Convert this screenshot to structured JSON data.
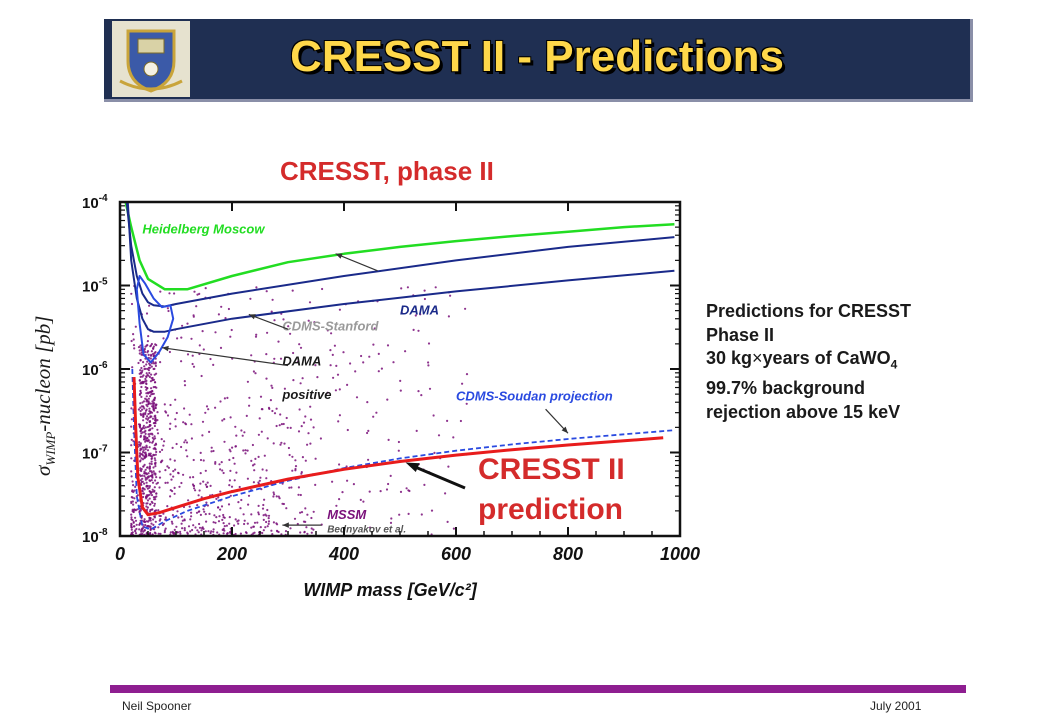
{
  "slide": {
    "title": "CRESST II - Predictions",
    "plot_title": "CRESST, phase II",
    "side_text": {
      "line1": "Predictions for CRESST",
      "line2": "Phase II",
      "line3_pre": "30 kg",
      "line3_times": "×",
      "line3_mid": "years of CaWO",
      "line3_sub": "4",
      "line4": "99.7% background",
      "line5": "rejection above 15 keV"
    },
    "prediction_label": {
      "line1": "CRESST II",
      "line2": "prediction"
    },
    "footer": {
      "left": "Neil Spooner",
      "right": "July 2001"
    }
  },
  "chart_data": {
    "type": "line",
    "xlabel": "WIMP mass [GeV/c²]",
    "ylabel": "σWIMP-nucleon [pb]",
    "ylabel_sym": "σ",
    "ylabel_sub": "WIMP",
    "ylabel_rest": "-nucleon [pb]",
    "xlim": [
      0,
      1000
    ],
    "ylim": [
      1e-08,
      0.0001
    ],
    "yscale": "log",
    "xticks": [
      0,
      200,
      400,
      600,
      800,
      1000
    ],
    "xtick_labels": [
      "0",
      "200",
      "400",
      "600",
      "800",
      "1000"
    ],
    "yticks": [
      1e-08,
      1e-07,
      1e-06,
      1e-05,
      0.0001
    ],
    "ytick_labels": [
      {
        "base": "10",
        "exp": "-8"
      },
      {
        "base": "10",
        "exp": "-7"
      },
      {
        "base": "10",
        "exp": "-6"
      },
      {
        "base": "10",
        "exp": "-5"
      },
      {
        "base": "10",
        "exp": "-4"
      }
    ],
    "colors": {
      "heidelberg": "#22dd22",
      "dama": "#1a2a8a",
      "cdms_soudan": "#2a4ae0",
      "cresst": "#e81c1c",
      "mssm": "#7a107a"
    },
    "series": [
      {
        "name": "Heidelberg Moscow",
        "color": "#22dd22",
        "width": 2.5,
        "dash": "",
        "x": [
          10,
          20,
          35,
          50,
          80,
          120,
          200,
          300,
          400,
          500,
          600,
          700,
          800,
          900,
          990
        ],
        "y": [
          0.0001,
          5e-05,
          2e-05,
          1.2e-05,
          9e-06,
          9e-06,
          1.3e-05,
          1.9e-05,
          2.4e-05,
          2.9e-05,
          3.4e-05,
          3.9e-05,
          4.4e-05,
          5e-05,
          5.4e-05
        ]
      },
      {
        "name": "DAMA",
        "color": "#1a2a8a",
        "width": 2,
        "dash": "",
        "x": [
          12,
          20,
          30,
          40,
          50,
          60,
          80,
          100,
          200,
          400,
          600,
          800,
          990
        ],
        "y": [
          0.0001,
          3e-05,
          1.3e-05,
          8e-06,
          6.3e-06,
          5.8e-06,
          5.6e-06,
          6e-06,
          8e-06,
          1.3e-05,
          2e-05,
          2.9e-05,
          3.8e-05
        ]
      },
      {
        "name": "CDMS-Stanford",
        "color": "#1a2a8a",
        "width": 2,
        "dash": "",
        "x": [
          14,
          20,
          30,
          40,
          50,
          60,
          80,
          100,
          200,
          400,
          600,
          800,
          990
        ],
        "y": [
          0.0001,
          2e-05,
          7e-06,
          4e-06,
          3e-06,
          2.8e-06,
          2.8e-06,
          3e-06,
          4e-06,
          6e-06,
          8.5e-06,
          1.15e-05,
          1.5e-05
        ]
      },
      {
        "name": "DAMA positive",
        "color": "#2a4ae0",
        "width": 2,
        "dash": "",
        "x": [
          30,
          35,
          45,
          60,
          75,
          90,
          95,
          85,
          70,
          55,
          42,
          35,
          30
        ],
        "y": [
          9e-06,
          1.3e-05,
          1.05e-05,
          7e-06,
          5.5e-06,
          5.8e-06,
          4e-06,
          2.4e-06,
          1.6e-06,
          1.2e-06,
          1.5e-06,
          3.5e-06,
          9e-06
        ]
      },
      {
        "name": "CDMS-Soudan projection",
        "color": "#2a4ae0",
        "width": 1.8,
        "dash": "5,3",
        "x": [
          22,
          25,
          30,
          40,
          55,
          80,
          120,
          200,
          300,
          400,
          500,
          600,
          700,
          800,
          900,
          990
        ],
        "y": [
          1e-06,
          2e-07,
          3e-08,
          1.3e-08,
          1.2e-08,
          1.5e-08,
          2e-08,
          3e-08,
          4.6e-08,
          6.5e-08,
          8.5e-08,
          1.05e-07,
          1.25e-07,
          1.45e-07,
          1.65e-07,
          1.85e-07
        ]
      },
      {
        "name": "CRESST II prediction",
        "color": "#e81c1c",
        "width": 3,
        "dash": "",
        "x": [
          25,
          28,
          32,
          40,
          50,
          70,
          100,
          150,
          200,
          300,
          400,
          500,
          600,
          700,
          800,
          900,
          970
        ],
        "y": [
          8e-07,
          2e-07,
          5e-08,
          2.2e-08,
          1.8e-08,
          1.9e-08,
          2.2e-08,
          2.8e-08,
          3.4e-08,
          4.8e-08,
          6.3e-08,
          7.8e-08,
          9.3e-08,
          1.08e-07,
          1.23e-07,
          1.38e-07,
          1.5e-07
        ]
      }
    ],
    "annotations": [
      {
        "text": "Heidelberg Moscow",
        "x": 40,
        "y": 4.2e-05,
        "color": "#22dd22",
        "arrow_to": null
      },
      {
        "text": "DAMA",
        "x": 500,
        "y": 4.5e-06,
        "color": "#1a2a8a",
        "arrow_from": [
          460,
          1.5e-05
        ],
        "arrow_to": [
          385,
          2.4e-05
        ]
      },
      {
        "text": "CDMS-Stanford",
        "x": 290,
        "y": 2.9e-06,
        "color": "#9a9a9a",
        "arrow_from": [
          300,
          3e-06
        ],
        "arrow_to": [
          230,
          4.5e-06
        ]
      },
      {
        "text": "DAMA",
        "x": 290,
        "y": 1.1e-06,
        "color": "#1a1a1a",
        "arrow_from": [
          300,
          1.1e-06
        ],
        "arrow_to": [
          75,
          1.8e-06
        ]
      },
      {
        "text": "positive",
        "x": 290,
        "y": 4.4e-07,
        "color": "#1a1a1a",
        "arrow_to": null
      },
      {
        "text": "CDMS-Soudan projection",
        "x": 600,
        "y": 4.2e-07,
        "color": "#2a4ae0",
        "arrow_from": [
          760,
          3.3e-07
        ],
        "arrow_to": [
          800,
          1.7e-07
        ]
      },
      {
        "text": "MSSM",
        "x": 370,
        "y": 1.6e-08,
        "color": "#7a107a",
        "arrow_from": [
          360,
          1.35e-08
        ],
        "arrow_to": [
          290,
          1.35e-08
        ]
      },
      {
        "text": "Bednyakov et al.",
        "x": 370,
        "y": 1.1e-08,
        "color": "#555555",
        "arrow_to": null
      }
    ],
    "grid": false,
    "legend": "none"
  }
}
